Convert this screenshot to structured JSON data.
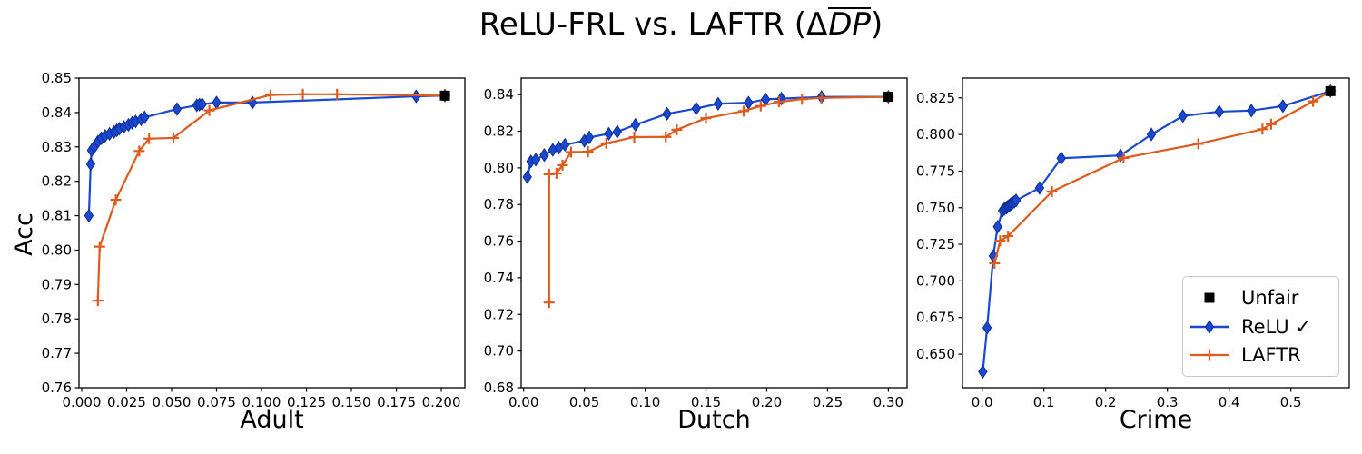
{
  "title": {
    "pre": "ReLU-FRL vs. LAFTR (Δ",
    "overlined": "DP",
    "post": ")"
  },
  "colors": {
    "relu_line": "#1a49cf",
    "relu_marker_edge": "#0c2d96",
    "laftr_line": "#dd5b1e",
    "unfair": "#000000",
    "axis": "#000000",
    "legend_border": "#c9c9c9",
    "background": "#ffffff"
  },
  "legend": {
    "position": "lower right of Crime panel",
    "items": [
      {
        "label": "Unfair",
        "marker": "square",
        "color": "#000000"
      },
      {
        "label": "ReLU ✓",
        "marker": "thin-diamond",
        "color": "#1a49cf"
      },
      {
        "label": "LAFTR",
        "marker": "plus",
        "color": "#dd5b1e"
      }
    ]
  },
  "chart_data": [
    {
      "type": "line",
      "xlabel": "Adult",
      "ylabel": "Acc",
      "xlim": [
        -0.0015,
        0.2131
      ],
      "ylim": [
        0.76,
        0.85
      ],
      "xtick_labels": [
        "0.000",
        "0.025",
        "0.050",
        "0.075",
        "0.100",
        "0.125",
        "0.150",
        "0.175",
        "0.200"
      ],
      "ytick_labels": [
        "0.76",
        "0.77",
        "0.78",
        "0.79",
        "0.80",
        "0.81",
        "0.82",
        "0.83",
        "0.84",
        "0.85"
      ],
      "series": [
        {
          "name": "ReLU ✓",
          "marker": "thin-diamond",
          "color": "#1a49cf",
          "points": [
            [
              0.004,
              0.81
            ],
            [
              0.005,
              0.825
            ],
            [
              0.0055,
              0.829
            ],
            [
              0.007,
              0.83
            ],
            [
              0.009,
              0.8315
            ],
            [
              0.011,
              0.8325
            ],
            [
              0.013,
              0.8332
            ],
            [
              0.0155,
              0.8338
            ],
            [
              0.018,
              0.8343
            ],
            [
              0.0195,
              0.8348
            ],
            [
              0.021,
              0.8353
            ],
            [
              0.0235,
              0.8358
            ],
            [
              0.026,
              0.8364
            ],
            [
              0.028,
              0.837
            ],
            [
              0.03,
              0.8374
            ],
            [
              0.033,
              0.838
            ],
            [
              0.035,
              0.8386
            ],
            [
              0.053,
              0.841
            ],
            [
              0.064,
              0.8421
            ],
            [
              0.0655,
              0.8423
            ],
            [
              0.067,
              0.8424
            ],
            [
              0.075,
              0.8429
            ],
            [
              0.095,
              0.8429
            ],
            [
              0.186,
              0.8447
            ],
            [
              0.202,
              0.8449
            ]
          ]
        },
        {
          "name": "LAFTR",
          "marker": "plus",
          "color": "#dd5b1e",
          "points": [
            [
              0.009,
              0.7853
            ],
            [
              0.01,
              0.801
            ],
            [
              0.019,
              0.8146
            ],
            [
              0.032,
              0.8288
            ],
            [
              0.0375,
              0.8324
            ],
            [
              0.051,
              0.8326
            ],
            [
              0.071,
              0.8406
            ],
            [
              0.105,
              0.8451
            ],
            [
              0.123,
              0.8453
            ],
            [
              0.142,
              0.8453
            ],
            [
              0.202,
              0.8449
            ]
          ]
        },
        {
          "name": "Unfair",
          "marker": "square",
          "color": "#000000",
          "points": [
            [
              0.202,
              0.8449
            ]
          ]
        }
      ]
    },
    {
      "type": "line",
      "xlabel": "Dutch",
      "ylabel": "",
      "xlim": [
        -0.002,
        0.3154
      ],
      "ylim": [
        0.68,
        0.849
      ],
      "xtick_labels": [
        "0.00",
        "0.05",
        "0.10",
        "0.15",
        "0.20",
        "0.25",
        "0.30"
      ],
      "ytick_labels": [
        "0.68",
        "0.70",
        "0.72",
        "0.74",
        "0.76",
        "0.78",
        "0.80",
        "0.82",
        "0.84"
      ],
      "series": [
        {
          "name": "ReLU ✓",
          "marker": "thin-diamond",
          "color": "#1a49cf",
          "points": [
            [
              0.003,
              0.795
            ],
            [
              0.006,
              0.8035
            ],
            [
              0.01,
              0.8045
            ],
            [
              0.017,
              0.807
            ],
            [
              0.024,
              0.8098
            ],
            [
              0.029,
              0.811
            ],
            [
              0.034,
              0.8126
            ],
            [
              0.05,
              0.8148
            ],
            [
              0.054,
              0.8166
            ],
            [
              0.07,
              0.8186
            ],
            [
              0.077,
              0.8197
            ],
            [
              0.092,
              0.8235
            ],
            [
              0.118,
              0.8295
            ],
            [
              0.142,
              0.8324
            ],
            [
              0.16,
              0.835
            ],
            [
              0.185,
              0.8356
            ],
            [
              0.199,
              0.8374
            ],
            [
              0.212,
              0.8378
            ],
            [
              0.245,
              0.8387
            ],
            [
              0.3,
              0.8388
            ]
          ]
        },
        {
          "name": "LAFTR",
          "marker": "plus",
          "color": "#dd5b1e",
          "points": [
            [
              0.021,
              0.7265
            ],
            [
              0.021,
              0.7965
            ],
            [
              0.027,
              0.797
            ],
            [
              0.032,
              0.8015
            ],
            [
              0.039,
              0.8086
            ],
            [
              0.053,
              0.8088
            ],
            [
              0.068,
              0.8134
            ],
            [
              0.091,
              0.8168
            ],
            [
              0.117,
              0.8169
            ],
            [
              0.126,
              0.8208
            ],
            [
              0.15,
              0.8271
            ],
            [
              0.181,
              0.831
            ],
            [
              0.195,
              0.8338
            ],
            [
              0.21,
              0.836
            ],
            [
              0.229,
              0.8375
            ],
            [
              0.245,
              0.8382
            ],
            [
              0.3,
              0.8388
            ]
          ]
        },
        {
          "name": "Unfair",
          "marker": "square",
          "color": "#000000",
          "points": [
            [
              0.3,
              0.8388
            ]
          ]
        }
      ]
    },
    {
      "type": "line",
      "xlabel": "Crime",
      "ylabel": "",
      "xlim": [
        -0.0319,
        0.5946
      ],
      "ylim": [
        0.6271,
        0.8385
      ],
      "xtick_labels": [
        "0.0",
        "0.1",
        "0.2",
        "0.3",
        "0.4",
        "0.5"
      ],
      "ytick_labels": [
        "0.650",
        "0.675",
        "0.700",
        "0.725",
        "0.750",
        "0.775",
        "0.800",
        "0.825"
      ],
      "series": [
        {
          "name": "ReLU ✓",
          "marker": "thin-diamond",
          "color": "#1a49cf",
          "points": [
            [
              0.001,
              0.638
            ],
            [
              0.008,
              0.668
            ],
            [
              0.018,
              0.717
            ],
            [
              0.025,
              0.737
            ],
            [
              0.033,
              0.748
            ],
            [
              0.036,
              0.7492
            ],
            [
              0.039,
              0.75
            ],
            [
              0.041,
              0.7506
            ],
            [
              0.043,
              0.7512
            ],
            [
              0.045,
              0.752
            ],
            [
              0.047,
              0.7526
            ],
            [
              0.049,
              0.7532
            ],
            [
              0.052,
              0.754
            ],
            [
              0.055,
              0.755
            ],
            [
              0.093,
              0.7635
            ],
            [
              0.128,
              0.7838
            ],
            [
              0.224,
              0.7857
            ],
            [
              0.274,
              0.8
            ],
            [
              0.325,
              0.8126
            ],
            [
              0.384,
              0.8156
            ],
            [
              0.436,
              0.8163
            ],
            [
              0.487,
              0.8194
            ],
            [
              0.564,
              0.8296
            ]
          ]
        },
        {
          "name": "LAFTR",
          "marker": "plus",
          "color": "#dd5b1e",
          "points": [
            [
              0.02,
              0.712
            ],
            [
              0.029,
              0.7274
            ],
            [
              0.042,
              0.7306
            ],
            [
              0.113,
              0.761
            ],
            [
              0.229,
              0.784
            ],
            [
              0.35,
              0.7936
            ],
            [
              0.454,
              0.8036
            ],
            [
              0.468,
              0.807
            ],
            [
              0.536,
              0.8226
            ],
            [
              0.564,
              0.8296
            ]
          ]
        },
        {
          "name": "Unfair",
          "marker": "square",
          "color": "#000000",
          "points": [
            [
              0.564,
              0.8296
            ]
          ]
        }
      ]
    }
  ]
}
